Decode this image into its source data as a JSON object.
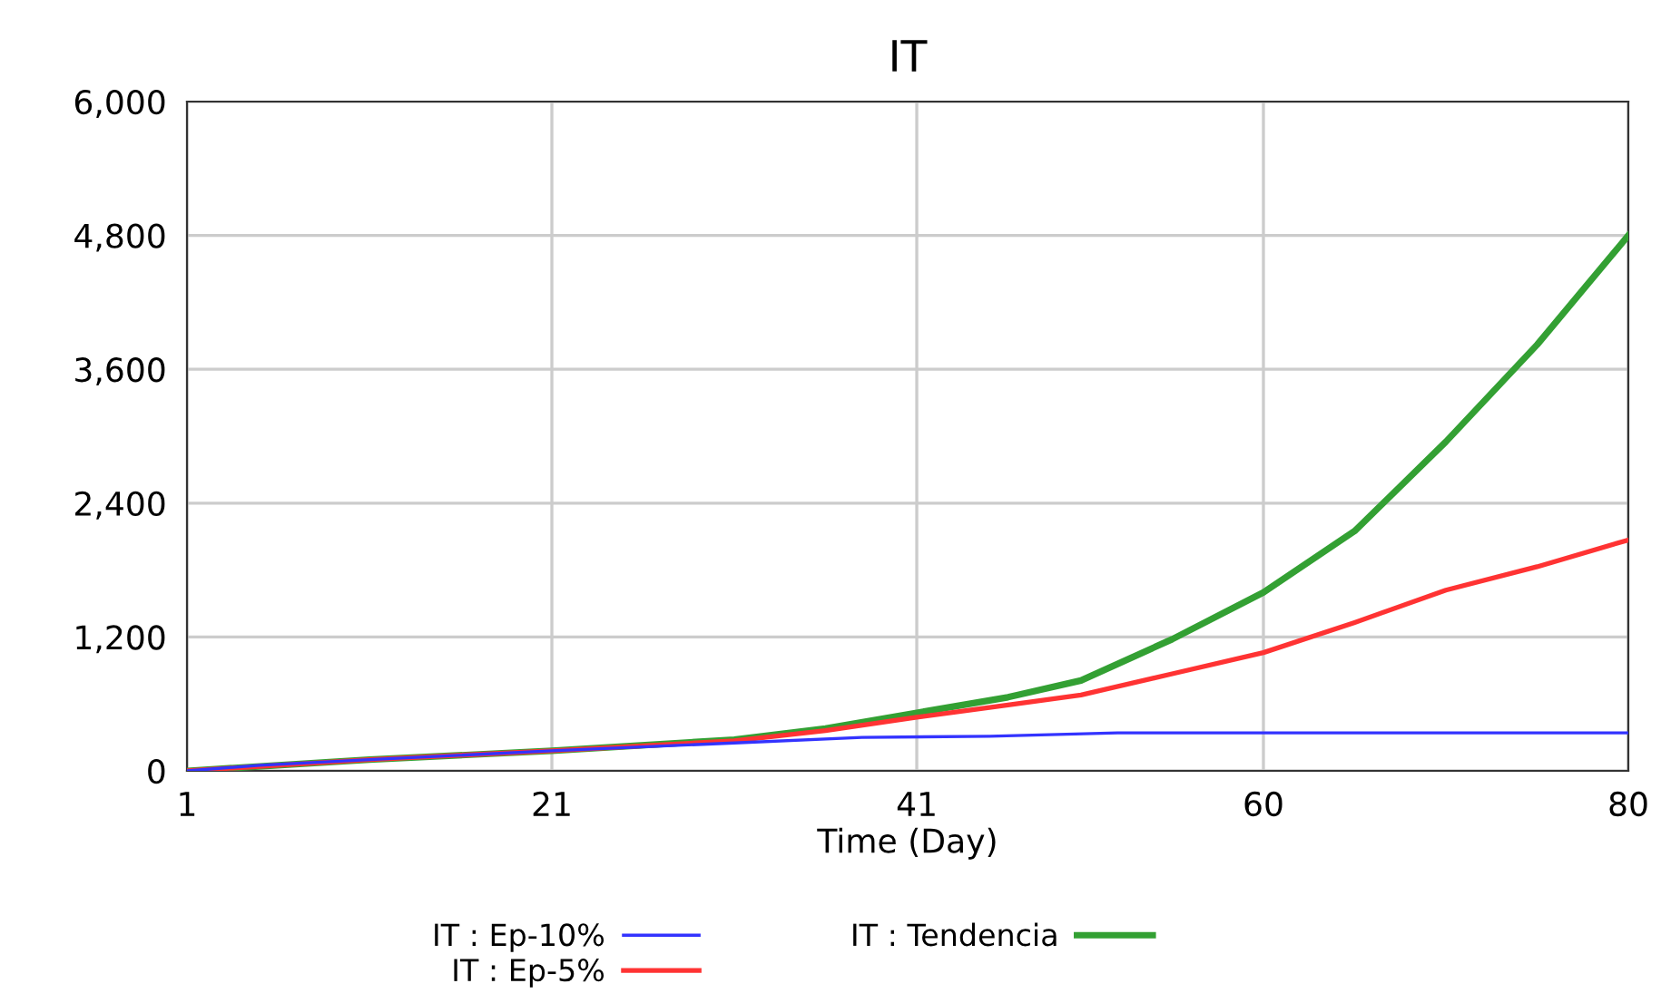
{
  "chart_data": {
    "type": "line",
    "title": "IT",
    "xlabel": "Time (Day)",
    "xlim": [
      1,
      80
    ],
    "xticks": [
      1,
      21,
      41,
      60,
      80
    ],
    "ylim": [
      0,
      6000
    ],
    "yticks": [
      {
        "value": 0,
        "label": "0"
      },
      {
        "value": 1200,
        "label": "1,200"
      },
      {
        "value": 2400,
        "label": "2,400"
      },
      {
        "value": 3600,
        "label": "3,600"
      },
      {
        "value": 4800,
        "label": "4,800"
      },
      {
        "value": 6000,
        "label": "6,000"
      }
    ],
    "grid": true,
    "legend": "bottom",
    "line_style": "solid",
    "marker": "none",
    "series": [
      {
        "name": "IT : Ep-10%",
        "color": "#3333ff",
        "x": [
          1,
          5,
          11,
          21,
          31,
          38,
          45,
          52,
          80
        ],
        "values": [
          0,
          50,
          100,
          180,
          250,
          300,
          310,
          340,
          340
        ]
      },
      {
        "name": "IT : Ep-5%",
        "color": "#ff3333",
        "x": [
          1,
          11,
          21,
          31,
          36,
          41,
          46,
          50,
          55,
          60,
          65,
          70,
          75,
          80
        ],
        "values": [
          0,
          100,
          180,
          270,
          360,
          480,
          590,
          680,
          870,
          1060,
          1330,
          1620,
          1830,
          2070
        ]
      },
      {
        "name": "IT : Tendencia",
        "color": "#33a033",
        "x": [
          1,
          11,
          21,
          31,
          36,
          41,
          46,
          50,
          55,
          60,
          65,
          70,
          75,
          80
        ],
        "values": [
          0,
          100,
          180,
          280,
          380,
          520,
          660,
          810,
          1180,
          1600,
          2150,
          2950,
          3820,
          4800
        ]
      }
    ]
  }
}
